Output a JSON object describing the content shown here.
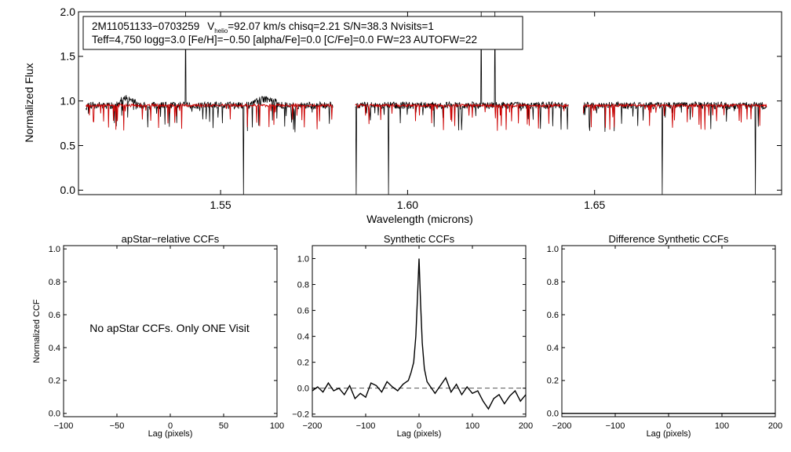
{
  "chart_data": [
    {
      "id": "spectrum",
      "type": "line",
      "xlabel": "Wavelength (microns)",
      "ylabel": "Normalized Flux",
      "xlim": [
        1.512,
        1.7
      ],
      "ylim": [
        -0.05,
        2.0
      ],
      "xticks": [
        {
          "v": 1.55,
          "label": "1.55"
        },
        {
          "v": 1.6,
          "label": "1.60"
        },
        {
          "v": 1.65,
          "label": "1.65"
        }
      ],
      "yticks": [
        {
          "v": 0.0,
          "label": "0.0"
        },
        {
          "v": 0.5,
          "label": "0.5"
        },
        {
          "v": 1.0,
          "label": "1.0"
        },
        {
          "v": 1.5,
          "label": "1.5"
        },
        {
          "v": 2.0,
          "label": "2.0"
        }
      ],
      "segments": [
        [
          1.514,
          1.58
        ],
        [
          1.586,
          1.643
        ],
        [
          1.647,
          1.696
        ]
      ],
      "series": [
        {
          "name": "observed",
          "color": "#000000",
          "base": 0.95,
          "noise": 0.04
        },
        {
          "name": "model",
          "color": "#cc0000",
          "base": 0.95,
          "noise": 0.015
        }
      ],
      "annotation": {
        "line1_id": "2M11051133−0703259",
        "line1_v": "V",
        "line1_v_sub": "helio",
        "line1_rest": "=92.07 km/s  chisq=2.21  S/N=38.3  Nvisits=1",
        "line2": "Teff=4,750 logg=3.0 [Fe/H]=−0.50 [alpha/Fe]=0.0 [C/Fe]=0.0 FW=23 AUTOFW=22"
      }
    },
    {
      "id": "ccf-apstar",
      "type": "line",
      "title": "apStar−relative CCFs",
      "xlabel": "Lag (pixels)",
      "ylabel": "Normalized CCF",
      "xlim": [
        -100,
        100
      ],
      "ylim": [
        -0.02,
        1.02
      ],
      "xticks": [
        {
          "v": -100,
          "label": "−100"
        },
        {
          "v": -50,
          "label": "−50"
        },
        {
          "v": 0,
          "label": "0"
        },
        {
          "v": 50,
          "label": "50"
        },
        {
          "v": 100,
          "label": "100"
        }
      ],
      "yticks": [
        {
          "v": 0.0,
          "label": "0.0"
        },
        {
          "v": 0.2,
          "label": "0.2"
        },
        {
          "v": 0.4,
          "label": "0.4"
        },
        {
          "v": 0.6,
          "label": "0.6"
        },
        {
          "v": 0.8,
          "label": "0.8"
        },
        {
          "v": 1.0,
          "label": "1.0"
        }
      ],
      "message": "No apStar CCFs.  Only ONE Visit",
      "series": []
    },
    {
      "id": "ccf-synthetic",
      "type": "line",
      "title": "Synthetic CCFs",
      "xlabel": "Lag (pixels)",
      "ylabel": "",
      "xlim": [
        -200,
        200
      ],
      "ylim": [
        -0.22,
        1.1
      ],
      "xticks": [
        {
          "v": -200,
          "label": "−200"
        },
        {
          "v": -100,
          "label": "−100"
        },
        {
          "v": 0,
          "label": "0"
        },
        {
          "v": 100,
          "label": "100"
        },
        {
          "v": 200,
          "label": "200"
        }
      ],
      "yticks": [
        {
          "v": -0.2,
          "label": "−0.2"
        },
        {
          "v": 0.0,
          "label": "0.0"
        },
        {
          "v": 0.2,
          "label": "0.2"
        },
        {
          "v": 0.4,
          "label": "0.4"
        },
        {
          "v": 0.6,
          "label": "0.6"
        },
        {
          "v": 0.8,
          "label": "0.8"
        },
        {
          "v": 1.0,
          "label": "1.0"
        }
      ],
      "zero_line": 0.0,
      "series": [
        {
          "name": "ccf",
          "color": "#000000",
          "x": [
            -200,
            -190,
            -180,
            -170,
            -160,
            -150,
            -140,
            -130,
            -120,
            -110,
            -100,
            -90,
            -80,
            -70,
            -60,
            -50,
            -40,
            -30,
            -20,
            -15,
            -10,
            -6,
            -3,
            0,
            3,
            6,
            10,
            15,
            20,
            30,
            40,
            50,
            60,
            70,
            80,
            90,
            100,
            110,
            120,
            130,
            140,
            150,
            160,
            170,
            180,
            190,
            200
          ],
          "y": [
            -0.02,
            0.01,
            -0.03,
            0.04,
            -0.02,
            0.0,
            -0.05,
            0.02,
            -0.08,
            -0.04,
            -0.07,
            0.04,
            0.02,
            -0.03,
            0.05,
            0.01,
            -0.02,
            0.03,
            0.06,
            0.12,
            0.2,
            0.4,
            0.7,
            1.0,
            0.65,
            0.35,
            0.15,
            0.05,
            0.02,
            -0.04,
            0.02,
            0.08,
            -0.03,
            0.03,
            -0.05,
            0.01,
            -0.04,
            -0.02,
            -0.1,
            -0.16,
            -0.08,
            -0.05,
            -0.12,
            -0.06,
            -0.02,
            -0.1,
            -0.05
          ]
        }
      ]
    },
    {
      "id": "ccf-difference",
      "type": "line",
      "title": "Difference Synthetic CCFs",
      "xlabel": "Lag (pixels)",
      "ylabel": "",
      "xlim": [
        -200,
        200
      ],
      "ylim": [
        -0.02,
        1.02
      ],
      "xticks": [
        {
          "v": -200,
          "label": "−200"
        },
        {
          "v": -100,
          "label": "−100"
        },
        {
          "v": 0,
          "label": "0"
        },
        {
          "v": 100,
          "label": "100"
        },
        {
          "v": 200,
          "label": "200"
        }
      ],
      "yticks": [
        {
          "v": 0.0,
          "label": "0.0"
        },
        {
          "v": 0.2,
          "label": "0.2"
        },
        {
          "v": 0.4,
          "label": "0.4"
        },
        {
          "v": 0.6,
          "label": "0.6"
        },
        {
          "v": 0.8,
          "label": "0.8"
        },
        {
          "v": 1.0,
          "label": "1.0"
        }
      ],
      "series": [
        {
          "name": "difference",
          "color": "#000000",
          "x": [
            -200,
            200
          ],
          "y": [
            0.0,
            0.0
          ]
        }
      ]
    }
  ]
}
